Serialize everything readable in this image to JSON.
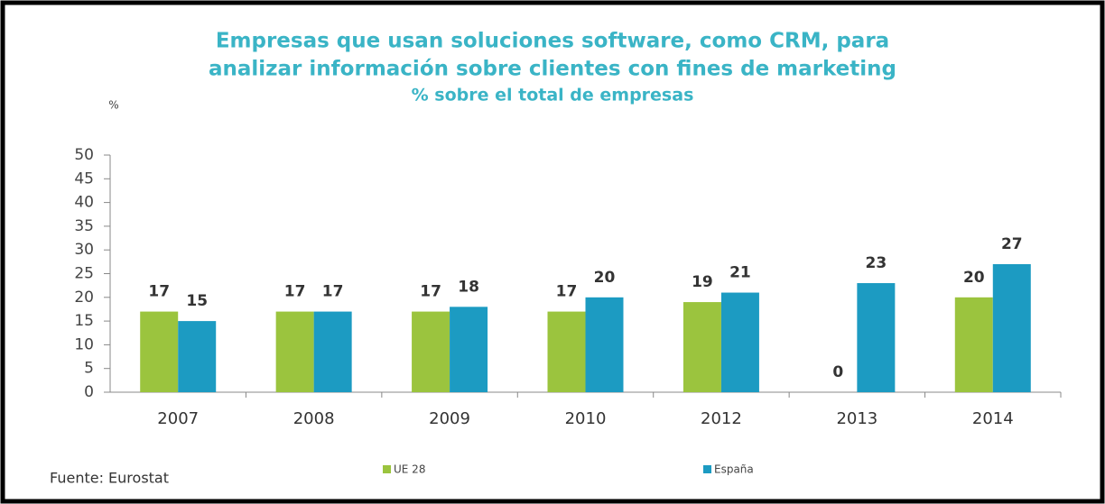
{
  "chart_data": {
    "type": "bar",
    "title": [
      "Empresas que usan soluciones software, como CRM,  para",
      "analizar información sobre clientes con fines de marketing"
    ],
    "subtitle": "% sobre el total de empresas",
    "y_label": "%",
    "source": "Fuente: Eurostat",
    "categories": [
      "2007",
      "2008",
      "2009",
      "2010",
      "2012",
      "2013",
      "2014"
    ],
    "series": [
      {
        "name": "UE 28",
        "color": "#9bc43e",
        "values": [
          17,
          17,
          17,
          17,
          19,
          0,
          20
        ]
      },
      {
        "name": "España",
        "color": "#1c9bc2",
        "values": [
          15,
          17,
          18,
          20,
          21,
          23,
          27
        ]
      }
    ],
    "ylim": [
      0,
      50
    ],
    "yticks": [
      0,
      5,
      10,
      15,
      20,
      25,
      30,
      35,
      40,
      45,
      50
    ],
    "grid": false
  }
}
